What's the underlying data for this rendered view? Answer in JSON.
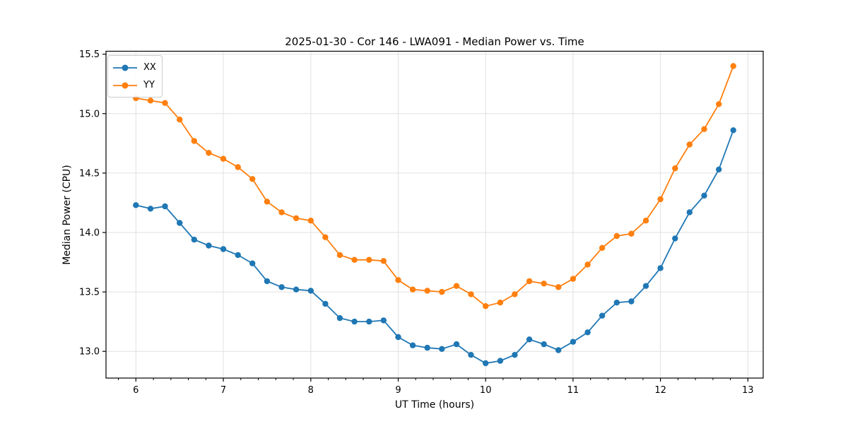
{
  "chart_data": {
    "type": "line",
    "title": "2025-01-30 - Cor 146 - LWA091 - Median Power vs. Time",
    "xlabel": "UT Time (hours)",
    "ylabel": "Median Power (CPU)",
    "x": [
      6.0,
      6.167,
      6.333,
      6.5,
      6.667,
      6.833,
      7.0,
      7.167,
      7.333,
      7.5,
      7.667,
      7.833,
      8.0,
      8.167,
      8.333,
      8.5,
      8.667,
      8.833,
      9.0,
      9.167,
      9.333,
      9.5,
      9.667,
      9.833,
      10.0,
      10.167,
      10.333,
      10.5,
      10.667,
      10.833,
      11.0,
      11.167,
      11.333,
      11.5,
      11.667,
      11.833,
      12.0,
      12.167,
      12.333,
      12.5,
      12.667,
      12.833
    ],
    "series": [
      {
        "name": "XX",
        "color": "#1f77b4",
        "values": [
          14.23,
          14.2,
          14.22,
          14.08,
          13.94,
          13.89,
          13.86,
          13.81,
          13.74,
          13.59,
          13.54,
          13.52,
          13.51,
          13.4,
          13.28,
          13.25,
          13.25,
          13.26,
          13.12,
          13.05,
          13.03,
          13.02,
          13.06,
          12.97,
          12.9,
          12.92,
          12.97,
          13.1,
          13.06,
          13.01,
          13.08,
          13.16,
          13.3,
          13.41,
          13.42,
          13.55,
          13.7,
          13.95,
          14.17,
          14.31,
          14.53,
          14.86
        ]
      },
      {
        "name": "YY",
        "color": "#ff7f0e",
        "values": [
          15.13,
          15.11,
          15.09,
          14.95,
          14.77,
          14.67,
          14.62,
          14.55,
          14.45,
          14.26,
          14.17,
          14.12,
          14.1,
          13.96,
          13.81,
          13.77,
          13.77,
          13.76,
          13.6,
          13.52,
          13.51,
          13.5,
          13.55,
          13.48,
          13.38,
          13.41,
          13.48,
          13.59,
          13.57,
          13.54,
          13.61,
          13.73,
          13.87,
          13.97,
          13.99,
          14.1,
          14.28,
          14.54,
          14.74,
          14.87,
          15.08,
          15.4
        ]
      }
    ],
    "xlim": [
      5.658,
      13.175
    ],
    "ylim": [
      12.775,
      15.525
    ],
    "xticks": [
      6,
      7,
      8,
      9,
      10,
      11,
      12,
      13
    ],
    "yticks": [
      13.0,
      13.5,
      14.0,
      14.5,
      15.0,
      15.5
    ],
    "x_minor_step": 0.2,
    "grid": true,
    "grid_color": "#e0e0e0",
    "spine_color": "#000000",
    "legend_position": "upper left",
    "marker": "o"
  }
}
